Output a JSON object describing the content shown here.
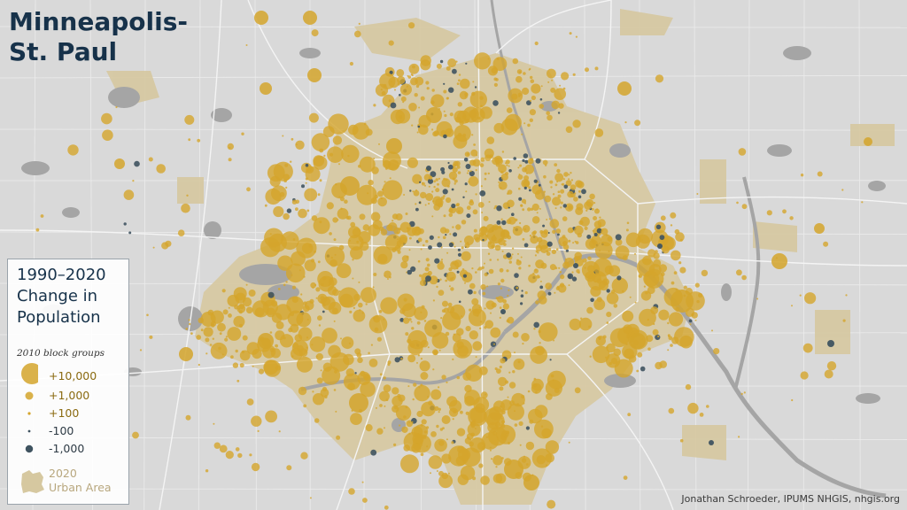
{
  "title_line1": "Minneapolis-",
  "title_line2": "St. Paul",
  "legend": {
    "title_lines": [
      "1990–2020",
      "Change in",
      "Population"
    ],
    "subtitle": "2010 block groups",
    "entries": [
      {
        "label": "+10,000",
        "value": 10000,
        "kind": "gain"
      },
      {
        "label": "+1,000",
        "value": 1000,
        "kind": "gain"
      },
      {
        "label": "+100",
        "value": 100,
        "kind": "gain"
      },
      {
        "label": "-100",
        "value": -100,
        "kind": "loss"
      },
      {
        "label": "-1,000",
        "value": -1000,
        "kind": "loss"
      }
    ],
    "urban_area_line1": "2020",
    "urban_area_line2": "Urban Area"
  },
  "credit": "Jonathan Schroeder, IPUMS NHGIS, nhgis.org",
  "colors": {
    "background": "#d9d9d9",
    "urban_area": "#d6c8a0",
    "gain": "#d4a52c",
    "loss": "#3f5360",
    "water": "#a5a5a5",
    "roads": "#f2f2f2",
    "boundaries": "#ffffff",
    "title": "#17324a"
  }
}
